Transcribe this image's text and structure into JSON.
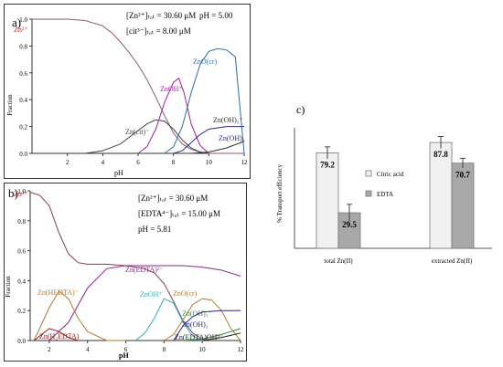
{
  "chart_data": [
    {
      "panel": "a)",
      "type": "line",
      "xlabel": "pH",
      "ylabel": "Fraction",
      "xlim": [
        0,
        12
      ],
      "ylim": [
        0,
        1.0
      ],
      "xticks": [
        "2",
        "4",
        "6",
        "8",
        "10",
        "12"
      ],
      "yticks": [
        "0.0",
        "0.2",
        "0.4",
        "0.6",
        "0.8",
        "1.0"
      ],
      "conditions": {
        "zn_tot": "[Zn²⁺]ₜₒₜ = 30.60 μM",
        "ph": "pH = 5.00",
        "cit_tot": "[cit³⁻]ₜₒₜ = 8.00 μM"
      },
      "series": [
        {
          "name": "Zn²⁺",
          "color": "#8a5a7a",
          "x": [
            0,
            1,
            2,
            3,
            4,
            4.5,
            5,
            5.5,
            6,
            6.5,
            7,
            7.5,
            8,
            8.5,
            9,
            9.5,
            10,
            11,
            12
          ],
          "y": [
            1.0,
            1.0,
            1.0,
            0.99,
            0.95,
            0.9,
            0.83,
            0.75,
            0.66,
            0.55,
            0.42,
            0.28,
            0.15,
            0.07,
            0.03,
            0.01,
            0.0,
            0.0,
            0.0
          ]
        },
        {
          "name": "Zn(cit)⁻",
          "color": "#444444",
          "x": [
            3,
            4,
            5,
            6,
            6.5,
            7,
            7.5,
            8,
            8.5,
            9,
            9.5,
            10
          ],
          "y": [
            0.0,
            0.02,
            0.07,
            0.17,
            0.22,
            0.25,
            0.24,
            0.18,
            0.1,
            0.04,
            0.01,
            0.0
          ]
        },
        {
          "name": "ZnOH⁺",
          "color": "#a020a0",
          "x": [
            6,
            6.5,
            7,
            7.5,
            8,
            8.3,
            8.6,
            9,
            9.5,
            10
          ],
          "y": [
            0.0,
            0.05,
            0.18,
            0.38,
            0.53,
            0.56,
            0.45,
            0.22,
            0.06,
            0.0
          ]
        },
        {
          "name": "ZnO(cr)",
          "color": "#2e6fa8",
          "x": [
            7.5,
            8,
            8.5,
            9,
            9.5,
            10,
            10.5,
            11,
            11.5,
            12
          ],
          "y": [
            0.0,
            0.05,
            0.2,
            0.45,
            0.66,
            0.76,
            0.78,
            0.77,
            0.72,
            0.0
          ]
        },
        {
          "name": "Zn(OH)₃⁻",
          "color": "#333333",
          "x": [
            9,
            10,
            11,
            12
          ],
          "y": [
            0.0,
            0.01,
            0.04,
            0.09
          ]
        },
        {
          "name": "Zn(OH)₂",
          "color": "#2a2a8a",
          "x": [
            8,
            8.5,
            9,
            9.5,
            10,
            11,
            12
          ],
          "y": [
            0.0,
            0.02,
            0.08,
            0.14,
            0.18,
            0.2,
            0.2
          ]
        }
      ]
    },
    {
      "panel": "b)",
      "type": "line",
      "xlabel": "pH",
      "ylabel": "Fraction",
      "xlim": [
        1,
        12
      ],
      "ylim": [
        0,
        1.0
      ],
      "xticks": [
        "2",
        "4",
        "6",
        "8",
        "10",
        "12"
      ],
      "yticks": [
        "0.0",
        "0.2",
        "0.4",
        "0.6",
        "0.8",
        "1.0"
      ],
      "conditions": {
        "zn_tot": "[Zn²⁺]ₜₒₜ = 30.60 μM",
        "edta_tot": "[EDTA⁴⁻]ₜₒₜ = 15.00 μM",
        "ph": "pH = 5.81"
      },
      "series": [
        {
          "name": "Zn²⁺",
          "color": "#8a3a5a",
          "x": [
            1,
            1.5,
            2,
            2.5,
            3,
            3.5,
            4,
            5,
            6,
            7,
            7.5,
            8,
            8.5,
            9,
            9.5,
            10,
            10.5
          ],
          "y": [
            0.99,
            0.97,
            0.9,
            0.72,
            0.58,
            0.52,
            0.51,
            0.51,
            0.5,
            0.48,
            0.45,
            0.38,
            0.26,
            0.13,
            0.05,
            0.01,
            0.0
          ]
        },
        {
          "name": "Zn(EDTA)²⁻",
          "color": "#8a2a8a",
          "x": [
            2,
            3,
            4,
            5,
            6,
            7,
            8,
            9,
            10,
            11,
            12
          ],
          "y": [
            0.0,
            0.12,
            0.35,
            0.48,
            0.5,
            0.5,
            0.5,
            0.5,
            0.49,
            0.47,
            0.43
          ]
        },
        {
          "name": "Zn(HEDTA)⁻",
          "color": "#b07a30",
          "x": [
            1.2,
            2,
            2.5,
            3,
            3.5,
            4,
            5,
            6
          ],
          "y": [
            0.0,
            0.22,
            0.33,
            0.28,
            0.15,
            0.06,
            0.0,
            0.0
          ]
        },
        {
          "name": "Zn(H₂EDTA)",
          "color": "#8a1a1a",
          "x": [
            1.2,
            2,
            2.5,
            3,
            3.5
          ],
          "y": [
            0.0,
            0.08,
            0.06,
            0.02,
            0.0
          ]
        },
        {
          "name": "ZnOH⁺",
          "color": "#30b0b0",
          "x": [
            6.5,
            7,
            7.5,
            8,
            8.5,
            9,
            9.5,
            10
          ],
          "y": [
            0.0,
            0.05,
            0.15,
            0.28,
            0.25,
            0.12,
            0.03,
            0.0
          ]
        },
        {
          "name": "ZnO(cr)",
          "color": "#b07a30",
          "x": [
            8,
            8.5,
            9,
            9.5,
            10,
            10.5,
            11,
            11.5,
            12
          ],
          "y": [
            0.0,
            0.04,
            0.14,
            0.24,
            0.28,
            0.27,
            0.2,
            0.08,
            0.0
          ]
        },
        {
          "name": "Zn(OH)₃⁻",
          "color": "#3a8a3a",
          "x": [
            9,
            10,
            11,
            12
          ],
          "y": [
            0.0,
            0.01,
            0.04,
            0.08
          ]
        },
        {
          "name": "Zn(OH)₂",
          "color": "#2a2a8a",
          "x": [
            8.5,
            9,
            9.5,
            10,
            11,
            12
          ],
          "y": [
            0.0,
            0.1,
            0.16,
            0.19,
            0.2,
            0.2
          ]
        },
        {
          "name": "Zn(EDTA)OH³⁻",
          "color": "#222222",
          "x": [
            10,
            11,
            12
          ],
          "y": [
            0.0,
            0.02,
            0.05
          ]
        }
      ]
    },
    {
      "panel": "c)",
      "type": "bar",
      "ylabel": "% Transport efficiency",
      "categories": [
        "total Zn(II)",
        "extracted Zn(II)"
      ],
      "ylim": [
        0,
        100
      ],
      "series": [
        {
          "name": "Citric acid",
          "values": [
            79.2,
            87.8
          ],
          "errors": [
            5,
            5
          ],
          "color": "#f0f0f0"
        },
        {
          "name": "EDTA",
          "values": [
            29.5,
            70.7
          ],
          "errors": [
            7,
            4
          ],
          "color": "#a8a8a8"
        }
      ],
      "data_labels": [
        [
          "79.2",
          "87.8"
        ],
        [
          "29.5",
          "70.7"
        ]
      ]
    }
  ]
}
